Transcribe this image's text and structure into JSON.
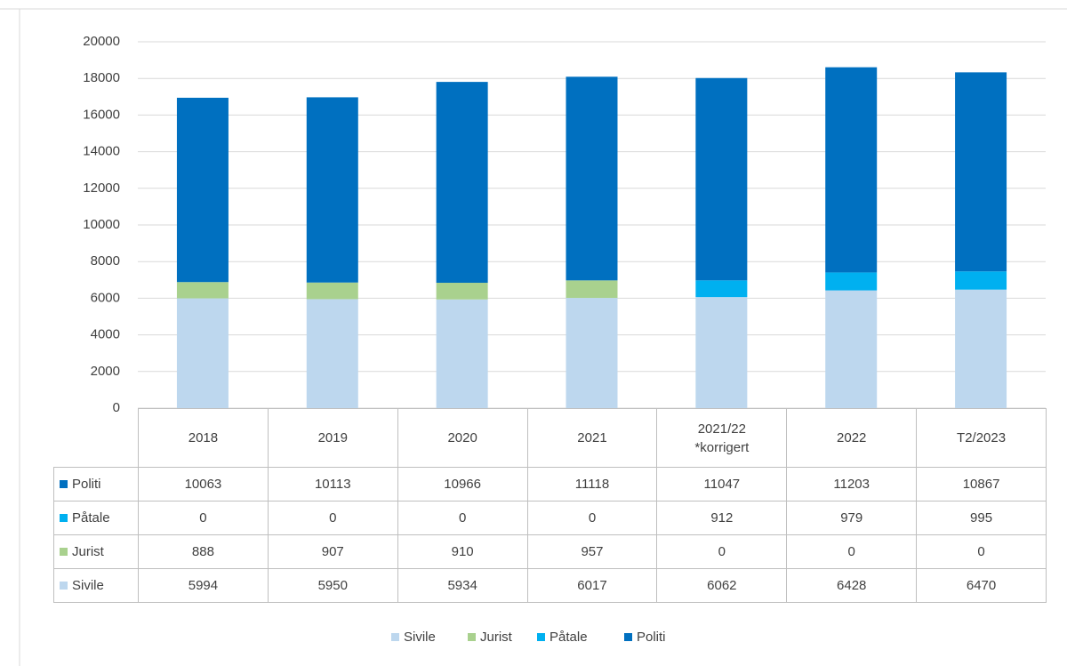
{
  "chart_data": {
    "type": "stacked_bar",
    "categories": [
      "2018",
      "2019",
      "2020",
      "2021",
      "2021/22\n*korrigert",
      "2022",
      "T2/2023"
    ],
    "series": [
      {
        "name": "Sivile",
        "color": "#bdd7ee",
        "values": [
          5994,
          5950,
          5934,
          6017,
          6062,
          6428,
          6470
        ]
      },
      {
        "name": "Jurist",
        "color": "#a9d18e",
        "values": [
          888,
          907,
          910,
          957,
          0,
          0,
          0
        ]
      },
      {
        "name": "Påtale",
        "color": "#00b0f0",
        "values": [
          0,
          0,
          0,
          0,
          912,
          979,
          995
        ]
      },
      {
        "name": "Politi",
        "color": "#0070c0",
        "values": [
          10063,
          10113,
          10966,
          11118,
          11047,
          11203,
          10867
        ]
      }
    ],
    "ylim": [
      0,
      20000
    ],
    "yticks": [
      0,
      2000,
      4000,
      6000,
      8000,
      10000,
      12000,
      14000,
      16000,
      18000,
      20000
    ],
    "grid": true
  }
}
